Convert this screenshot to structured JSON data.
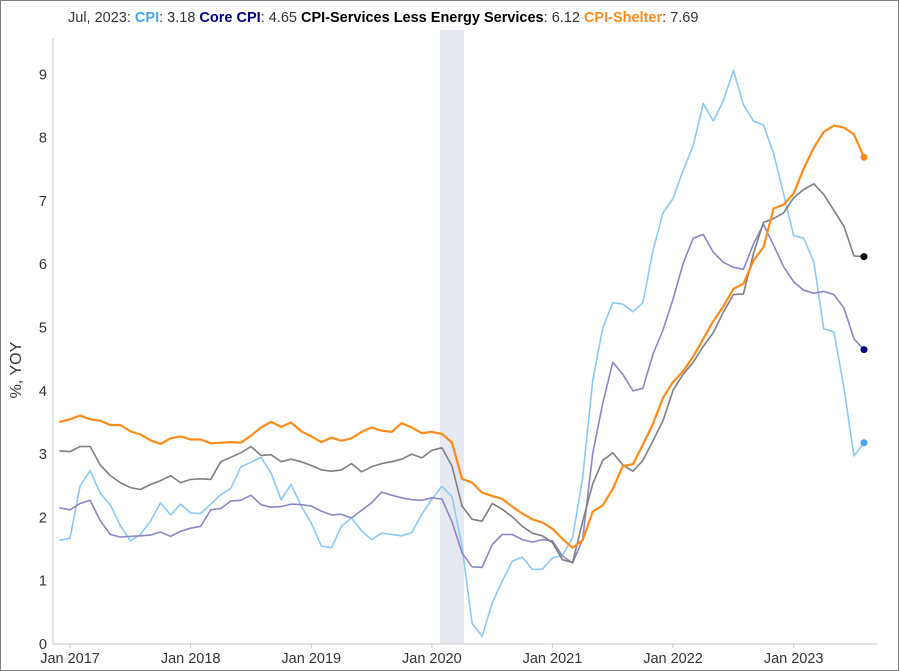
{
  "chart_data": {
    "type": "line",
    "title": "",
    "header": {
      "date": "Jul, 2023",
      "entries": [
        {
          "name": "CPI",
          "value": "3.18"
        },
        {
          "name": "Core CPI",
          "value": "4.65"
        },
        {
          "name": "CPI-Services Less Energy Services",
          "value": "6.12"
        },
        {
          "name": "CPI-Shelter",
          "value": "7.69"
        }
      ]
    },
    "ylabel": "%, YOY",
    "xlabel": "",
    "ylim": [
      0,
      9.6
    ],
    "yticks": [
      "0",
      "1",
      "2",
      "3",
      "4",
      "5",
      "6",
      "7",
      "8",
      "9"
    ],
    "xticks": [
      "Jan 2017",
      "Jan 2018",
      "Jan 2019",
      "Jan 2020",
      "Jan 2021",
      "Jan 2022",
      "Jan 2023"
    ],
    "x_start": "Dec 2016",
    "x_end": "Jul 2023",
    "recession_band": {
      "start_month_index": 38,
      "end_month_index": 40,
      "color": "#e6eaf0"
    },
    "series": [
      {
        "name": "CPI",
        "color": "#8cc8f5",
        "end_color": "#4aa3f0",
        "values": [
          1.64,
          1.67,
          2.5,
          2.74,
          2.38,
          2.2,
          1.87,
          1.63,
          1.73,
          1.94,
          2.23,
          2.04,
          2.21,
          2.07,
          2.06,
          2.21,
          2.36,
          2.46,
          2.8,
          2.87,
          2.95,
          2.7,
          2.28,
          2.52,
          2.18,
          1.91,
          1.55,
          1.52,
          1.86,
          1.99,
          1.79,
          1.65,
          1.75,
          1.73,
          1.71,
          1.76,
          2.05,
          2.29,
          2.49,
          2.33,
          1.54,
          0.33,
          0.12,
          0.65,
          0.99,
          1.31,
          1.37,
          1.18,
          1.18,
          1.36,
          1.4,
          1.68,
          2.62,
          4.16,
          4.99,
          5.39,
          5.37,
          5.25,
          5.39,
          6.22,
          6.81,
          7.04,
          7.48,
          7.87,
          8.54,
          8.26,
          8.58,
          9.06,
          8.52,
          8.26,
          8.2,
          7.75,
          7.11,
          6.45,
          6.41,
          6.04,
          4.98,
          4.93,
          4.05,
          2.97,
          3.18
        ]
      },
      {
        "name": "Core CPI",
        "color": "#8b86c4",
        "end_color": "#000080",
        "values": [
          2.15,
          2.12,
          2.22,
          2.27,
          1.95,
          1.73,
          1.69,
          1.7,
          1.71,
          1.72,
          1.77,
          1.7,
          1.78,
          1.83,
          1.86,
          2.12,
          2.14,
          2.26,
          2.27,
          2.35,
          2.2,
          2.16,
          2.17,
          2.21,
          2.2,
          2.18,
          2.1,
          2.04,
          2.05,
          1.99,
          2.11,
          2.23,
          2.4,
          2.35,
          2.31,
          2.28,
          2.27,
          2.31,
          2.29,
          1.93,
          1.44,
          1.22,
          1.21,
          1.57,
          1.73,
          1.73,
          1.65,
          1.61,
          1.65,
          1.63,
          1.39,
          1.28,
          1.65,
          3.01,
          3.8,
          4.45,
          4.26,
          4.0,
          4.04,
          4.58,
          4.96,
          5.45,
          6.01,
          6.41,
          6.47,
          6.19,
          6.03,
          5.95,
          5.92,
          6.32,
          6.63,
          6.3,
          5.96,
          5.72,
          5.59,
          5.54,
          5.57,
          5.52,
          5.31,
          4.82,
          4.65
        ]
      },
      {
        "name": "CPI-Services Less Energy Services",
        "color": "#7f7f7f",
        "end_color": "#000000",
        "values": [
          3.05,
          3.04,
          3.12,
          3.12,
          2.83,
          2.66,
          2.55,
          2.47,
          2.44,
          2.52,
          2.58,
          2.66,
          2.55,
          2.6,
          2.61,
          2.6,
          2.88,
          2.95,
          3.02,
          3.12,
          2.98,
          2.99,
          2.88,
          2.92,
          2.88,
          2.82,
          2.75,
          2.73,
          2.75,
          2.85,
          2.72,
          2.8,
          2.85,
          2.88,
          2.92,
          3.0,
          2.94,
          3.06,
          3.1,
          2.81,
          2.18,
          1.97,
          1.94,
          2.22,
          2.13,
          2.01,
          1.86,
          1.75,
          1.71,
          1.6,
          1.33,
          1.29,
          1.93,
          2.53,
          2.9,
          3.02,
          2.83,
          2.73,
          2.9,
          3.21,
          3.53,
          4.01,
          4.26,
          4.45,
          4.7,
          4.92,
          5.24,
          5.52,
          5.53,
          6.17,
          6.66,
          6.72,
          6.81,
          7.05,
          7.18,
          7.27,
          7.1,
          6.85,
          6.6,
          6.13,
          6.12
        ]
      },
      {
        "name": "CPI-Shelter",
        "color": "#ff8c1a",
        "end_color": "#ff8c1a",
        "values": [
          3.51,
          3.55,
          3.61,
          3.55,
          3.53,
          3.46,
          3.46,
          3.36,
          3.31,
          3.22,
          3.16,
          3.25,
          3.28,
          3.23,
          3.23,
          3.17,
          3.18,
          3.19,
          3.18,
          3.29,
          3.42,
          3.51,
          3.43,
          3.5,
          3.36,
          3.28,
          3.19,
          3.26,
          3.21,
          3.25,
          3.35,
          3.42,
          3.37,
          3.35,
          3.49,
          3.42,
          3.33,
          3.35,
          3.32,
          3.18,
          2.61,
          2.55,
          2.39,
          2.34,
          2.29,
          2.17,
          2.06,
          1.97,
          1.92,
          1.82,
          1.66,
          1.52,
          1.64,
          2.09,
          2.19,
          2.45,
          2.81,
          2.84,
          3.15,
          3.48,
          3.89,
          4.14,
          4.31,
          4.54,
          4.82,
          5.1,
          5.33,
          5.61,
          5.69,
          6.06,
          6.27,
          6.88,
          6.94,
          7.12,
          7.51,
          7.84,
          8.09,
          8.19,
          8.16,
          8.05,
          7.69
        ]
      }
    ]
  }
}
